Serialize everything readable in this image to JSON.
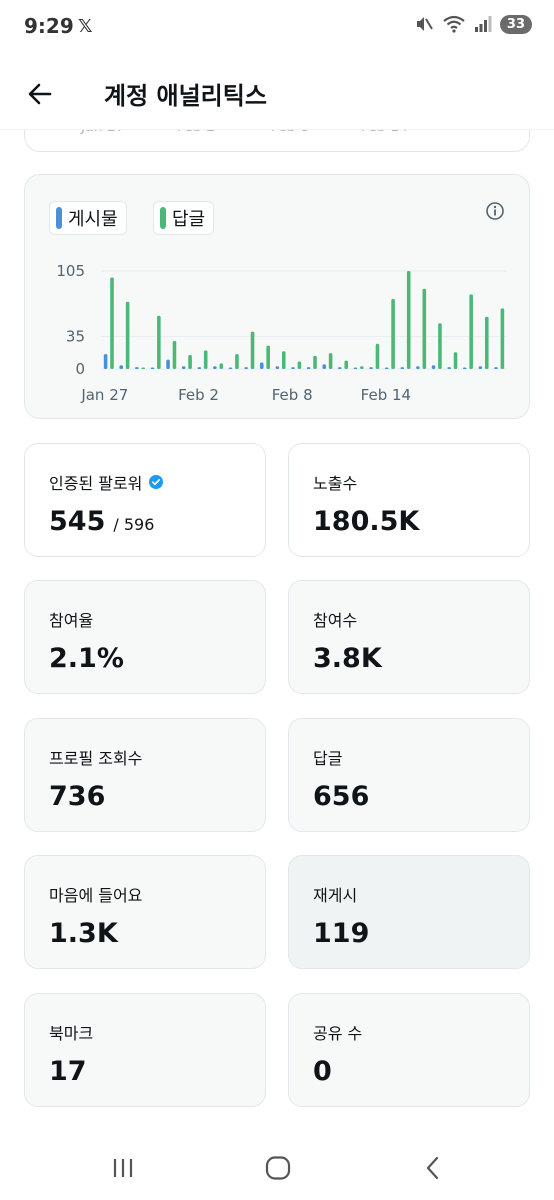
{
  "status_bar": {
    "time": "9:29",
    "x_logo": "𝕏",
    "battery": "33",
    "icons": [
      "mute-icon",
      "wifi-icon",
      "signal-icon"
    ]
  },
  "header": {
    "title": "계정 애널리틱스",
    "back_icon": "arrow-left-icon"
  },
  "partial_card": {
    "ticks": [
      "Jan 27",
      "Feb 2",
      "Feb 8",
      "Feb 14"
    ]
  },
  "chart_data": {
    "type": "bar",
    "legend": [
      {
        "label": "게시물",
        "color": "#4a90d9"
      },
      {
        "label": "답글",
        "color": "#4cb877"
      }
    ],
    "x_tick_labels": [
      "Jan 27",
      "Feb 2",
      "Feb 8",
      "Feb 14"
    ],
    "x_tick_index": [
      0,
      6,
      12,
      18
    ],
    "y_ticks": [
      0,
      35,
      105
    ],
    "ylim": [
      0,
      105
    ],
    "categories": [
      "Jan 27",
      "Jan 28",
      "Jan 29",
      "Jan 30",
      "Jan 31",
      "Feb 1",
      "Feb 2",
      "Feb 3",
      "Feb 4",
      "Feb 5",
      "Feb 6",
      "Feb 7",
      "Feb 8",
      "Feb 9",
      "Feb 10",
      "Feb 11",
      "Feb 12",
      "Feb 13",
      "Feb 14",
      "Feb 15",
      "Feb 16",
      "Feb 17",
      "Feb 18",
      "Feb 19",
      "Feb 20",
      "Feb 21"
    ],
    "series": [
      {
        "name": "게시물",
        "color": "#4a90d9",
        "values": [
          16,
          4,
          2,
          1,
          10,
          3,
          2,
          3,
          1,
          2,
          7,
          3,
          2,
          2,
          5,
          2,
          1,
          2,
          1,
          2,
          3,
          4,
          2,
          1,
          3,
          2
        ]
      },
      {
        "name": "답글",
        "color": "#4cb877",
        "values": [
          98,
          72,
          0,
          57,
          30,
          15,
          20,
          6,
          16,
          40,
          25,
          19,
          8,
          14,
          17,
          9,
          3,
          27,
          75,
          105,
          86,
          49,
          18,
          80,
          56,
          65
        ]
      }
    ]
  },
  "stats": [
    {
      "label": "인증된 팔로워",
      "value": "545",
      "sub": "/ 596",
      "verified": true
    },
    {
      "label": "노출수",
      "value": "180.5K"
    },
    {
      "label": "참여율",
      "value": "2.1%"
    },
    {
      "label": "참여수",
      "value": "3.8K"
    },
    {
      "label": "프로필 조회수",
      "value": "736"
    },
    {
      "label": "답글",
      "value": "656"
    },
    {
      "label": "마음에 들어요",
      "value": "1.3K"
    },
    {
      "label": "재게시",
      "value": "119"
    },
    {
      "label": "북마크",
      "value": "17"
    },
    {
      "label": "공유 수",
      "value": "0"
    }
  ],
  "nav_bar": {
    "icons": [
      "recent-apps-icon",
      "home-icon",
      "back-icon"
    ]
  }
}
